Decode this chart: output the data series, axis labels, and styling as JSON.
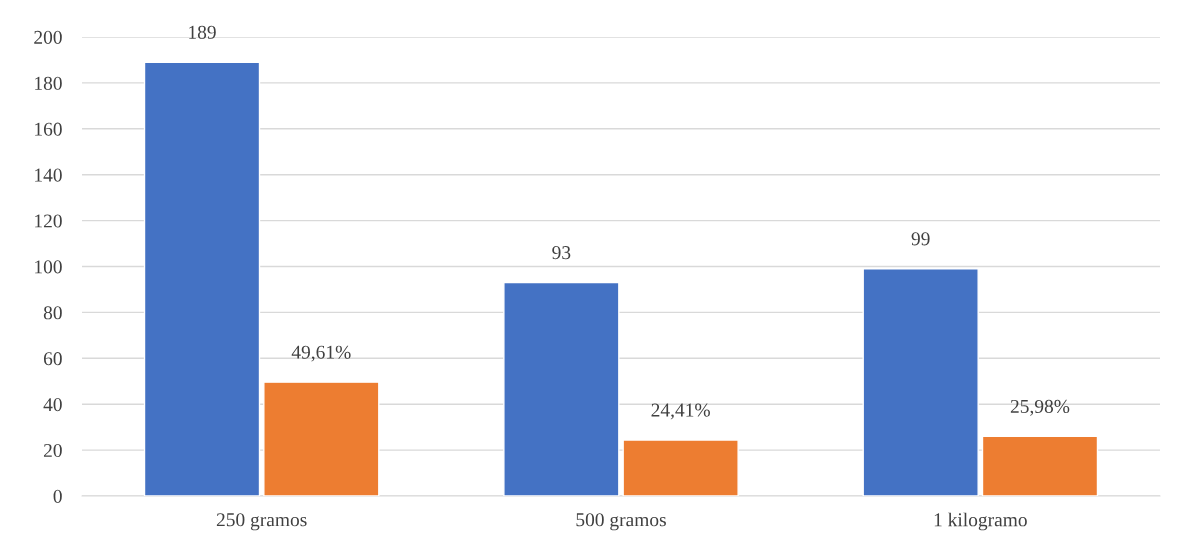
{
  "chart_data": {
    "type": "bar",
    "categories": [
      "250 gramos",
      "500 gramos",
      "1 kilogramo"
    ],
    "series": [
      {
        "color": "#4472c4",
        "values": [
          189,
          93,
          99
        ],
        "value_labels": [
          "189",
          "93",
          "99"
        ]
      },
      {
        "color": "#ed7d31",
        "values": [
          49.61,
          24.41,
          25.98
        ],
        "value_labels": [
          "49,61%",
          "24,41%",
          "25,98%"
        ]
      }
    ],
    "ylim": [
      0,
      200
    ],
    "yticks": [
      0,
      20,
      40,
      60,
      80,
      100,
      120,
      140,
      160,
      180,
      200
    ],
    "grid": "y"
  }
}
